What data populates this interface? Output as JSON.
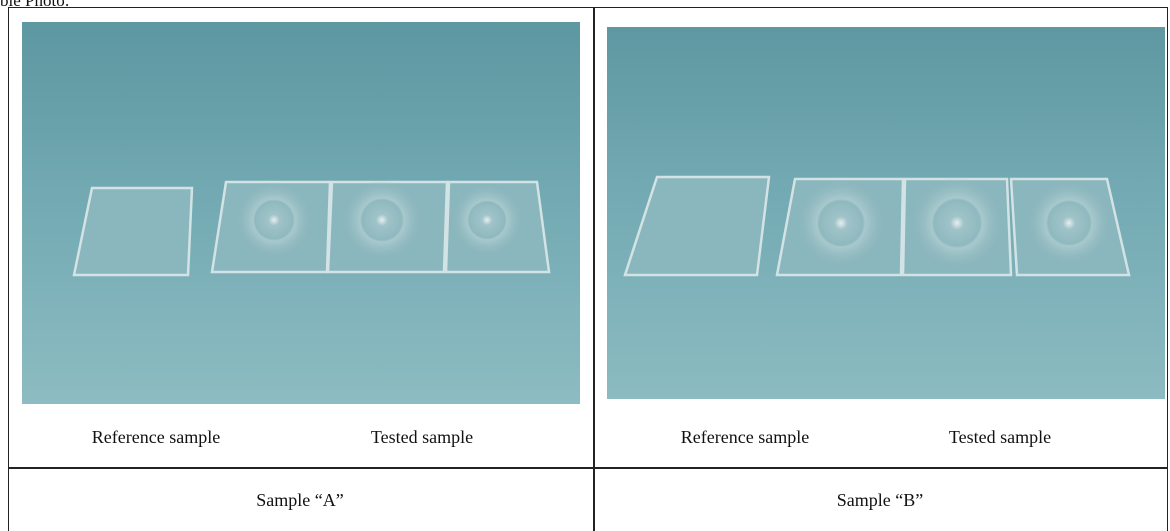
{
  "header": {
    "title": "ble Photo:"
  },
  "table": {
    "photo_captions": [
      [
        "Reference sample",
        "Tested sample"
      ],
      [
        "Reference sample",
        "Tested sample"
      ]
    ],
    "sample_labels": [
      "Sample “A”",
      "Sample “B”"
    ]
  }
}
